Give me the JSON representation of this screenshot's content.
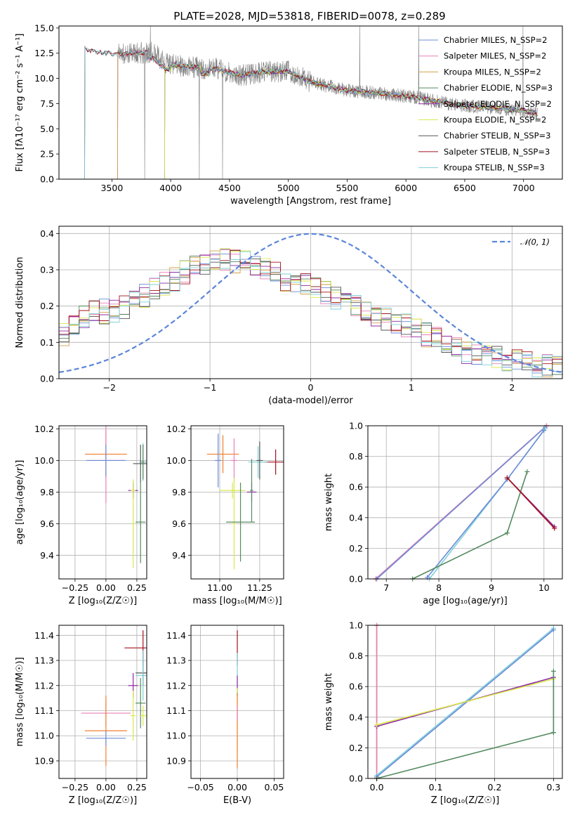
{
  "figure": {
    "title": "PLATE=2028, MJD=53818, FIBERID=0078, z=0.289"
  },
  "colors": {
    "chabrier_miles": "#6b8bd8",
    "salpeter_miles": "#e87fb9",
    "kroupa_miles": "#d2a04a",
    "chabrier_elodie": "#548a5e",
    "salpeter_elodie": "#8e2aa1",
    "kroupa_elodie": "#d8e84e",
    "chabrier_stelib": "#555555",
    "salpeter_stelib": "#a4111d",
    "kroupa_stelib": "#7fcfd8",
    "orange": "#f07f2e",
    "gaussian": "#5b86d9",
    "data_spectrum": "#808080"
  },
  "chart_data": [
    {
      "id": "spectrum",
      "type": "line",
      "xlabel": "wavelength [Angstrom, rest frame]",
      "ylabel": "Flux [fλ10⁻¹⁷ erg cm⁻² s⁻¹ A⁻¹]",
      "xlim": [
        3050,
        7330
      ],
      "ylim": [
        0,
        15.2
      ],
      "xticks": [
        3500,
        4000,
        4500,
        5000,
        5500,
        6000,
        6500,
        7000
      ],
      "yticks": [
        0.0,
        2.5,
        5.0,
        7.5,
        10.0,
        12.5,
        15.0
      ],
      "legend_position": "top-right",
      "series": [
        {
          "name": "Chabrier MILES, N_SSP=2",
          "color_key": "chabrier_miles",
          "start": 3550
        },
        {
          "name": "Salpeter MILES, N_SSP=2",
          "color_key": "salpeter_miles",
          "start": 3550
        },
        {
          "name": "Kroupa MILES, N_SSP=2",
          "color_key": "kroupa_miles",
          "start": 3550
        },
        {
          "name": "Chabrier ELODIE, N_SSP=3",
          "color_key": "chabrier_elodie",
          "start": 3950
        },
        {
          "name": "Salpeter ELODIE, N_SSP=2",
          "color_key": "salpeter_elodie",
          "start": 3950
        },
        {
          "name": "Kroupa ELODIE, N_SSP=2",
          "color_key": "kroupa_elodie",
          "start": 3950
        },
        {
          "name": "Chabrier STELIB, N_SSP=3",
          "color_key": "chabrier_stelib",
          "start": 3270
        },
        {
          "name": "Salpeter STELIB, N_SSP=3",
          "color_key": "salpeter_stelib",
          "start": 3270
        },
        {
          "name": "Kroupa STELIB, N_SSP=3",
          "color_key": "kroupa_stelib",
          "start": 3270
        }
      ],
      "model_shape": {
        "x": [
          3270,
          3300,
          3400,
          3550,
          3700,
          3850,
          3950,
          4050,
          4200,
          4400,
          4600,
          4800,
          5000,
          5200,
          5500,
          5800,
          6100,
          6400,
          6700,
          7000,
          7120
        ],
        "y": [
          12.9,
          12.8,
          12.6,
          12.4,
          12.5,
          12.6,
          11.6,
          11.3,
          11.1,
          10.9,
          10.3,
          10.7,
          10.7,
          9.6,
          8.8,
          8.5,
          8.1,
          7.4,
          7.1,
          6.8,
          6.5
        ]
      },
      "data_spectrum": {
        "x_start": 3550,
        "x_end": 7120
      }
    },
    {
      "id": "residuals",
      "type": "line",
      "xlabel": "(data-model)/error",
      "ylabel": "Normed distribution",
      "xlim": [
        -2.5,
        2.5
      ],
      "ylim": [
        0,
        0.42
      ],
      "xticks": [
        -2,
        -1,
        0,
        1,
        2
      ],
      "yticks": [
        0.0,
        0.1,
        0.2,
        0.3,
        0.4
      ],
      "legend_position": "top-right",
      "gaussian_label": "𝒩(0, 1)",
      "bins": 50,
      "hist_shape": {
        "x": [
          -2.5,
          -2.2,
          -1.9,
          -1.5,
          -1.2,
          -0.9,
          -0.6,
          -0.3,
          0.0,
          0.3,
          0.6,
          1.0,
          1.3,
          1.6,
          2.0,
          2.5
        ],
        "y": [
          0.11,
          0.18,
          0.19,
          0.25,
          0.3,
          0.33,
          0.32,
          0.28,
          0.25,
          0.22,
          0.18,
          0.14,
          0.1,
          0.07,
          0.05,
          0.025
        ]
      }
    },
    {
      "id": "age-vs-z",
      "type": "scatter",
      "xlabel": "Z [log₁₀(Z/Z☉)]",
      "ylabel": "age  [log₁₀(age/yr)]",
      "xlim": [
        -0.38,
        0.33
      ],
      "ylim": [
        9.25,
        10.22
      ],
      "xticks": [
        -0.25,
        0.0,
        0.25
      ],
      "xticklabels": [
        "−0.25",
        "0.00",
        "0.25"
      ],
      "yticks": [
        9.4,
        9.6,
        9.8,
        10.0,
        10.2
      ],
      "points": [
        {
          "color_key": "orange",
          "x": 0.0,
          "xerr": 0.17,
          "y": 10.04,
          "yerr": 0.15
        },
        {
          "color_key": "salpeter_miles",
          "x": 0.0,
          "xerr": 0.15,
          "y": 10.0,
          "yerr": 0.27
        },
        {
          "color_key": "chabrier_miles",
          "x": 0.0,
          "xerr": 0.16,
          "y": 10.0,
          "yerr": 0.1
        },
        {
          "color_key": "kroupa_stelib",
          "x": 0.3,
          "xerr": 0.03,
          "y": 9.99,
          "yerr": 0.12
        },
        {
          "color_key": "chabrier_stelib",
          "x": 0.28,
          "xerr": 0.06,
          "y": 9.98,
          "yerr": 0.12
        },
        {
          "color_key": "chabrier_elodie",
          "x": 0.3,
          "xerr": 0.01,
          "y": 9.99,
          "yerr": 0.11
        },
        {
          "color_key": "kroupa_elodie",
          "x": 0.22,
          "xerr": 0.01,
          "y": 9.6,
          "yerr": 0.28
        },
        {
          "color_key": "salpeter_elodie",
          "x": 0.22,
          "xerr": 0.04,
          "y": 9.81,
          "yerr": 0.05
        },
        {
          "color_key": "chabrier_elodie",
          "x": 0.28,
          "xerr": 0.04,
          "y": 9.61,
          "yerr": 0.26
        },
        {
          "color_key": "kroupa_elodie",
          "x": 0.22,
          "xerr": 0.02,
          "y": 9.81,
          "yerr": 0.05
        }
      ]
    },
    {
      "id": "age-vs-mass",
      "type": "scatter",
      "xlabel": "mass [log₁₀(M/M☉)]",
      "ylabel": "",
      "xlim": [
        10.82,
        11.4
      ],
      "ylim": [
        9.25,
        10.22
      ],
      "xticks": [
        11.0,
        11.25
      ],
      "xticklabels": [
        "11.00",
        "11.25"
      ],
      "yticks": [
        9.4,
        9.6,
        9.8,
        10.0,
        10.2
      ],
      "points": [
        {
          "color_key": "orange",
          "x": 11.02,
          "xerr": 0.1,
          "y": 10.04,
          "yerr": 0.12
        },
        {
          "color_key": "chabrier_miles",
          "x": 10.99,
          "xerr": 0.02,
          "y": 10.0,
          "yerr": 0.17
        },
        {
          "color_key": "salpeter_miles",
          "x": 11.09,
          "xerr": 0.02,
          "y": 10.0,
          "yerr": 0.14
        },
        {
          "color_key": "salpeter_stelib",
          "x": 11.35,
          "xerr": 0.07,
          "y": 9.99,
          "yerr": 0.08
        },
        {
          "color_key": "kroupa_stelib",
          "x": 11.24,
          "xerr": 0.06,
          "y": 9.99,
          "yerr": 0.1
        },
        {
          "color_key": "chabrier_stelib",
          "x": 11.25,
          "xerr": 0.02,
          "y": 10.0,
          "yerr": 0.12
        },
        {
          "color_key": "kroupa_elodie",
          "x": 11.08,
          "xerr": 0.08,
          "y": 9.81,
          "yerr": 0.05
        },
        {
          "color_key": "kroupa_elodie",
          "x": 11.09,
          "xerr": 0.01,
          "y": 9.6,
          "yerr": 0.29
        },
        {
          "color_key": "salpeter_elodie",
          "x": 11.2,
          "xerr": 0.03,
          "y": 9.8,
          "yerr": 0.06
        },
        {
          "color_key": "chabrier_elodie",
          "x": 11.13,
          "xerr": 0.09,
          "y": 9.61,
          "yerr": 0.25
        },
        {
          "color_key": "chabrier_elodie",
          "x": 11.2,
          "xerr": 0.01,
          "y": 9.81,
          "yerr": 0.2
        }
      ]
    },
    {
      "id": "massweight-vs-age",
      "type": "line",
      "xlabel": "age  [log₁₀(age/yr)]",
      "ylabel": "mass weight",
      "xlim": [
        6.65,
        10.35
      ],
      "ylim": [
        0,
        1.0
      ],
      "xticks": [
        7,
        8,
        9,
        10
      ],
      "yticks": [
        0.0,
        0.2,
        0.4,
        0.6,
        0.8,
        1.0
      ],
      "series": [
        {
          "color_key": "orange",
          "x": [
            6.8,
            10.05
          ],
          "y": [
            0.0,
            1.0
          ]
        },
        {
          "color_key": "salpeter_miles",
          "x": [
            6.8,
            10.05
          ],
          "y": [
            0.0,
            1.0
          ]
        },
        {
          "color_key": "chabrier_miles",
          "x": [
            6.82,
            10.02
          ],
          "y": [
            0.0,
            0.99
          ]
        },
        {
          "color_key": "kroupa_stelib",
          "x": [
            7.82,
            9.3,
            10.02
          ],
          "y": [
            0.0,
            0.65,
            0.98
          ]
        },
        {
          "color_key": "chabrier_miles",
          "x": [
            7.78,
            9.3,
            10.0
          ],
          "y": [
            0.01,
            0.65,
            0.97
          ]
        },
        {
          "color_key": "chabrier_elodie",
          "x": [
            7.5,
            9.3,
            9.68
          ],
          "y": [
            0.0,
            0.3,
            0.7
          ]
        },
        {
          "color_key": "kroupa_elodie",
          "x": [
            9.3,
            10.2
          ],
          "y": [
            0.66,
            0.34
          ]
        },
        {
          "color_key": "salpeter_elodie",
          "x": [
            9.3,
            10.2
          ],
          "y": [
            0.66,
            0.34
          ]
        },
        {
          "color_key": "salpeter_stelib",
          "x": [
            9.3,
            10.2
          ],
          "y": [
            0.66,
            0.33
          ]
        }
      ]
    },
    {
      "id": "mass-vs-z",
      "type": "scatter",
      "xlabel": "Z [log₁₀(Z/Z☉)]",
      "ylabel": "mass [log₁₀(M/M☉)]",
      "xlim": [
        -0.38,
        0.33
      ],
      "ylim": [
        10.83,
        11.44
      ],
      "xticks": [
        -0.25,
        0.0,
        0.25
      ],
      "xticklabels": [
        "−0.25",
        "0.00",
        "0.25"
      ],
      "yticks": [
        10.9,
        11.0,
        11.1,
        11.2,
        11.3,
        11.4
      ],
      "points": [
        {
          "color_key": "salpeter_miles",
          "x": 0.0,
          "xerr": 0.2,
          "y": 11.09,
          "yerr": 0.05
        },
        {
          "color_key": "orange",
          "x": 0.0,
          "xerr": 0.17,
          "y": 11.02,
          "yerr": 0.14
        },
        {
          "color_key": "chabrier_miles",
          "x": 0.0,
          "xerr": 0.16,
          "y": 10.99,
          "yerr": 0.03
        },
        {
          "color_key": "salpeter_stelib",
          "x": 0.3,
          "xerr": 0.15,
          "y": 11.35,
          "yerr": 0.07
        },
        {
          "color_key": "chabrier_stelib",
          "x": 0.3,
          "xerr": 0.06,
          "y": 11.25,
          "yerr": 0.05
        },
        {
          "color_key": "kroupa_stelib",
          "x": 0.3,
          "xerr": 0.06,
          "y": 11.24,
          "yerr": 0.1
        },
        {
          "color_key": "salpeter_elodie",
          "x": 0.22,
          "xerr": 0.04,
          "y": 11.2,
          "yerr": 0.05
        },
        {
          "color_key": "chabrier_elodie",
          "x": 0.28,
          "xerr": 0.04,
          "y": 11.13,
          "yerr": 0.1
        },
        {
          "color_key": "kroupa_elodie",
          "x": 0.22,
          "xerr": 0.02,
          "y": 11.08,
          "yerr": 0.1
        },
        {
          "color_key": "kroupa_elodie",
          "x": 0.3,
          "xerr": 0.03,
          "y": 11.08,
          "yerr": 0.04
        }
      ]
    },
    {
      "id": "mass-vs-ebv",
      "type": "scatter",
      "xlabel": "E(B-V)",
      "ylabel": "",
      "xlim": [
        -0.063,
        0.063
      ],
      "ylim": [
        10.83,
        11.44
      ],
      "xticks": [
        -0.05,
        0.0,
        0.05
      ],
      "xticklabels": [
        "−0.05",
        "0.00",
        "0.05"
      ],
      "yticks": [
        10.9,
        11.0,
        11.1,
        11.2,
        11.3,
        11.4
      ],
      "points": [
        {
          "color_key": "salpeter_stelib",
          "x": 0.0,
          "xerr": 0.0,
          "y": 11.35,
          "yerr": 0.07
        },
        {
          "color_key": "kroupa_stelib",
          "x": 0.0,
          "xerr": 0.0,
          "y": 11.24,
          "yerr": 0.09
        },
        {
          "color_key": "salpeter_elodie",
          "x": 0.0,
          "xerr": 0.0,
          "y": 11.2,
          "yerr": 0.04
        },
        {
          "color_key": "kroupa_elodie",
          "x": 0.0,
          "xerr": 0.0,
          "y": 11.06,
          "yerr": 0.13
        },
        {
          "color_key": "orange",
          "x": 0.0,
          "xerr": 0.0,
          "y": 11.02,
          "yerr": 0.15
        },
        {
          "color_key": "salpeter_miles",
          "x": 0.0,
          "xerr": 0.0,
          "y": 11.09,
          "yerr": 0.03
        }
      ]
    },
    {
      "id": "massweight-vs-z",
      "type": "line",
      "xlabel": "Z [log₁₀(Z/Z☉)]",
      "ylabel": "mass weight",
      "xlim": [
        -0.015,
        0.315
      ],
      "ylim": [
        0,
        1.0
      ],
      "xticks": [
        0.0,
        0.1,
        0.2,
        0.3
      ],
      "xticklabels": [
        "0.0",
        "0.1",
        "0.2",
        "0.3"
      ],
      "yticks": [
        0.0,
        0.2,
        0.4,
        0.6,
        0.8,
        1.0
      ],
      "series": [
        {
          "color_key": "orange",
          "x": [
            0.0,
            0.0
          ],
          "y": [
            0.0,
            1.0
          ]
        },
        {
          "color_key": "salpeter_miles",
          "x": [
            0.0,
            0.0
          ],
          "y": [
            0.0,
            1.0
          ]
        },
        {
          "color_key": "kroupa_stelib",
          "x": [
            0.0,
            0.3
          ],
          "y": [
            0.02,
            0.98
          ]
        },
        {
          "color_key": "chabrier_miles",
          "x": [
            0.0,
            0.3
          ],
          "y": [
            0.01,
            0.97
          ]
        },
        {
          "color_key": "salpeter_elodie",
          "x": [
            0.0,
            0.3
          ],
          "y": [
            0.34,
            0.66
          ]
        },
        {
          "color_key": "kroupa_elodie",
          "x": [
            0.0,
            0.3
          ],
          "y": [
            0.35,
            0.65
          ]
        },
        {
          "color_key": "chabrier_elodie",
          "x": [
            0.0,
            0.3,
            0.3,
            0.3
          ],
          "y": [
            0.0,
            0.3,
            0.7,
            0.3
          ]
        }
      ]
    }
  ]
}
